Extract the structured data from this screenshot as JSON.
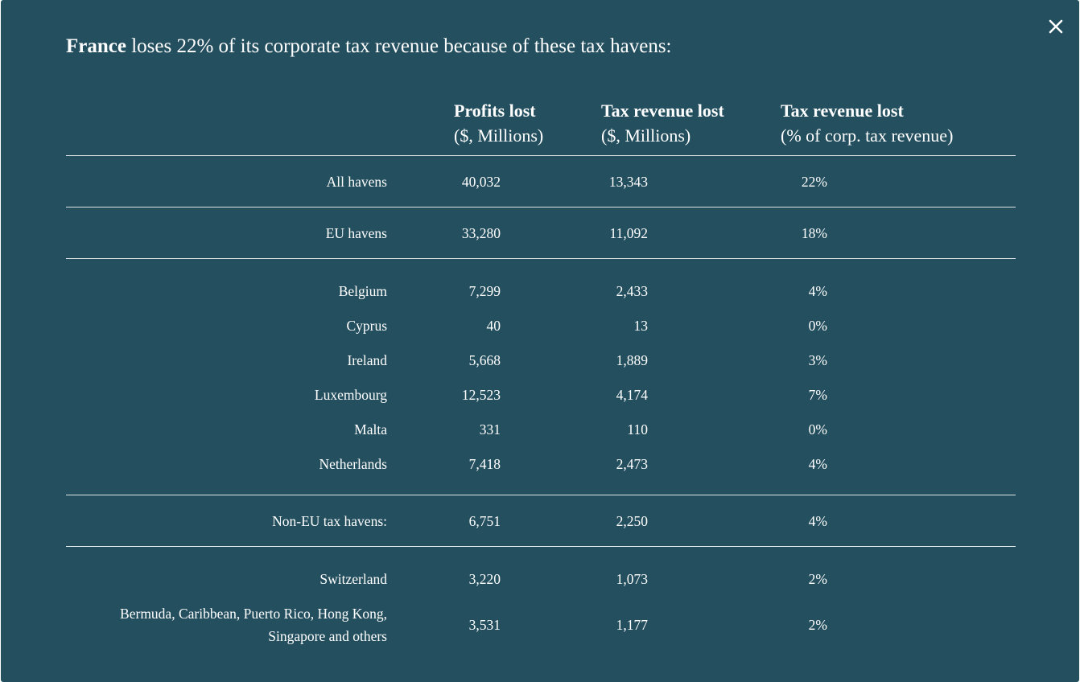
{
  "modal": {
    "close_icon": "close-icon",
    "headline": {
      "country": "France",
      "text": " loses 22% of its corporate tax revenue because of these tax havens:"
    },
    "columns": [
      {
        "title": "Profits lost",
        "subtitle": "($, Millions)"
      },
      {
        "title": "Tax revenue lost",
        "subtitle": "($, Millions)"
      },
      {
        "title": "Tax revenue lost",
        "subtitle": "(% of corp. tax revenue)"
      }
    ],
    "rows": [
      {
        "label": "All havens",
        "profits": "40,032",
        "tax": "13,343",
        "pct": "22%"
      },
      {
        "label": "EU havens",
        "profits": "33,280",
        "tax": "11,092",
        "pct": "18%"
      },
      {
        "label": "Belgium",
        "profits": "7,299",
        "tax": "2,433",
        "pct": "4%"
      },
      {
        "label": "Cyprus",
        "profits": "40",
        "tax": "13",
        "pct": "0%"
      },
      {
        "label": "Ireland",
        "profits": "5,668",
        "tax": "1,889",
        "pct": "3%"
      },
      {
        "label": "Luxembourg",
        "profits": "12,523",
        "tax": "4,174",
        "pct": "7%"
      },
      {
        "label": "Malta",
        "profits": "331",
        "tax": "110",
        "pct": "0%"
      },
      {
        "label": "Netherlands",
        "profits": "7,418",
        "tax": "2,473",
        "pct": "4%"
      },
      {
        "label": "Non-EU tax havens:",
        "profits": "6,751",
        "tax": "2,250",
        "pct": "4%"
      },
      {
        "label": "Switzerland",
        "profits": "3,220",
        "tax": "1,073",
        "pct": "2%"
      },
      {
        "label_line1": "Bermuda, Caribbean, Puerto Rico, Hong Kong,",
        "label_line2": "Singapore and others",
        "profits": "3,531",
        "tax": "1,177",
        "pct": "2%"
      }
    ]
  }
}
